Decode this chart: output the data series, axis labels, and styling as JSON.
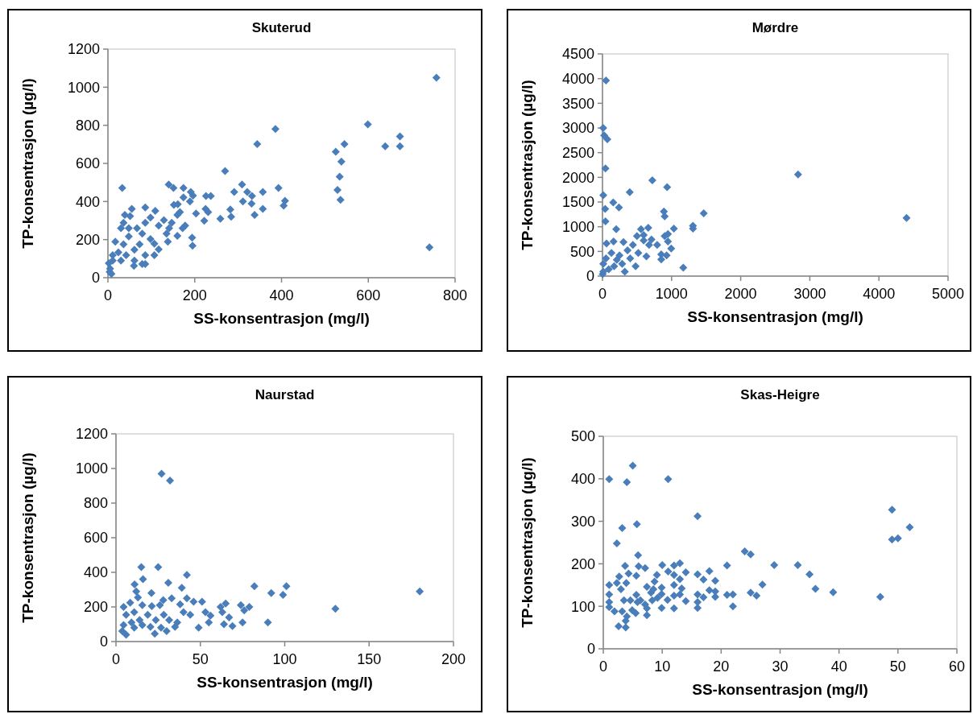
{
  "chart_data": [
    {
      "type": "scatter",
      "title": "Skuterud",
      "xlabel": "SS-konsentrasjon (mg/l)",
      "ylabel": "TP-konsentrasjon (µg/l)",
      "xlim": [
        0,
        800
      ],
      "ylim": [
        0,
        1200
      ],
      "xticks": [
        0,
        200,
        400,
        600,
        800
      ],
      "yticks": [
        0,
        200,
        400,
        600,
        800,
        1000,
        1200
      ],
      "marker": "diamond",
      "grid": false,
      "series": [
        {
          "color": "#4a7ebb",
          "x": [
            757,
            741,
            599,
            673,
            673,
            639,
            545,
            525,
            538,
            534,
            529,
            536,
            386,
            344,
            270,
            393,
            408,
            405,
            309,
            291,
            321,
            332,
            357,
            311,
            331,
            357,
            338,
            282,
            284,
            259,
            226,
            237,
            191,
            196,
            174,
            174,
            151,
            140,
            189,
            152,
            161,
            203,
            225,
            231,
            222,
            194,
            195,
            138,
            160,
            178,
            117,
            107,
            107,
            86,
            109,
            33,
            55,
            39,
            51,
            86,
            79,
            60,
            5,
            4,
            11,
            24,
            36,
            48,
            67,
            86,
            98,
            117,
            129,
            141,
            160,
            30,
            42,
            61,
            73,
            61,
            17,
            11,
            30,
            36,
            48,
            79,
            98,
            135,
            147,
            166,
            172,
            86,
            2,
            8
          ],
          "values": [
            1050,
            160,
            805,
            742,
            690,
            690,
            701,
            661,
            609,
            530,
            461,
            409,
            781,
            701,
            560,
            471,
            403,
            378,
            489,
            450,
            450,
            429,
            450,
            400,
            389,
            361,
            330,
            358,
            320,
            309,
            429,
            429,
            450,
            431,
            471,
            422,
            471,
            489,
            400,
            382,
            386,
            337,
            361,
            344,
            299,
            210,
            168,
            189,
            220,
            274,
            149,
            118,
            179,
            369,
            351,
            471,
            361,
            330,
            323,
            72,
            72,
            62,
            48,
            31,
            90,
            133,
            175,
            217,
            260,
            288,
            316,
            274,
            302,
            260,
            330,
            90,
            118,
            147,
            175,
            90,
            189,
            118,
            260,
            288,
            260,
            231,
            203,
            231,
            288,
            344,
            260,
            118,
            76,
            20
          ]
        }
      ]
    },
    {
      "type": "scatter",
      "title": "Mørdre",
      "xlabel": "SS-konsentrasjon (mg/l)",
      "ylabel": "TP-konsentrasjon (µg/l)",
      "xlim": [
        0,
        5000
      ],
      "ylim": [
        0,
        4500
      ],
      "xticks": [
        0,
        1000,
        2000,
        3000,
        4000,
        5000
      ],
      "yticks": [
        0,
        500,
        1000,
        1500,
        2000,
        2500,
        3000,
        3500,
        4000,
        4500
      ],
      "marker": "diamond",
      "grid": false,
      "series": [
        {
          "color": "#4a7ebb",
          "x": [
            4400,
            2830,
            50,
            10,
            25,
            70,
            43,
            12,
            39,
            43,
            156,
            238,
            394,
            721,
            935,
            889,
            900,
            1465,
            1309,
            1309,
            1033,
            199,
            557,
            662,
            499,
            596,
            709,
            791,
            900,
            947,
            947,
            994,
            850,
            928,
            850,
            635,
            1169,
            58,
            160,
            304,
            440,
            362,
            246,
            129,
            51,
            12,
            12,
            168,
            285,
            401,
            518,
            323,
            479,
            90,
            4,
            207,
            674,
            596
          ],
          "values": [
            1180,
            2060,
            3960,
            3000,
            2850,
            2770,
            2180,
            1640,
            1360,
            1110,
            1490,
            1390,
            1700,
            1940,
            1800,
            1310,
            1210,
            1270,
            1020,
            960,
            960,
            950,
            950,
            980,
            810,
            830,
            740,
            630,
            810,
            850,
            700,
            560,
            440,
            420,
            340,
            400,
            170,
            660,
            700,
            690,
            630,
            520,
            420,
            470,
            360,
            250,
            90,
            200,
            250,
            360,
            470,
            90,
            200,
            140,
            40,
            330,
            630,
            720
          ]
        }
      ]
    },
    {
      "type": "scatter",
      "title": "Naurstad",
      "xlabel": "SS-konsentrasjon (mg/l)",
      "ylabel": "TP-konsentrasjon (µg/l)",
      "xlim": [
        0,
        200
      ],
      "ylim": [
        0,
        1200
      ],
      "xticks": [
        0,
        50,
        100,
        150,
        200
      ],
      "yticks": [
        0,
        200,
        400,
        600,
        800,
        1000,
        1200
      ],
      "marker": "diamond",
      "grid": false,
      "series": [
        {
          "color": "#4a7ebb",
          "x": [
            180,
            130,
            27,
            32,
            15,
            25,
            42,
            16,
            11,
            12,
            13,
            21,
            31,
            39,
            82,
            101,
            92,
            99,
            79,
            74,
            76,
            75,
            90,
            65,
            62,
            63,
            67,
            64,
            69,
            56,
            53,
            55,
            49,
            51,
            46,
            42,
            33,
            28,
            38,
            40,
            44,
            35,
            30,
            23,
            4.5,
            8.4,
            15.6,
            21.2,
            26,
            6,
            10.8,
            18.8,
            23.6,
            28.3,
            31.5,
            36.3,
            4.5,
            3.7,
            6,
            10.8,
            15.6,
            20.4,
            9.2,
            14,
            26.7
          ],
          "values": [
            290,
            190,
            970,
            930,
            430,
            430,
            385,
            360,
            330,
            290,
            255,
            280,
            340,
            310,
            320,
            320,
            280,
            270,
            200,
            210,
            180,
            110,
            110,
            220,
            200,
            170,
            140,
            100,
            90,
            150,
            170,
            110,
            80,
            230,
            230,
            250,
            250,
            240,
            215,
            170,
            155,
            85,
            60,
            45,
            200,
            225,
            210,
            205,
            210,
            155,
            170,
            155,
            125,
            155,
            125,
            110,
            95,
            60,
            40,
            80,
            95,
            85,
            110,
            125,
            80
          ]
        }
      ]
    },
    {
      "type": "scatter",
      "title": "Skas-Heigre",
      "xlabel": "SS-konsentrasjon (mg/l)",
      "ylabel": "TP-konsentrasjon (µg/l)",
      "xlim": [
        0,
        60
      ],
      "ylim": [
        0,
        500
      ],
      "xticks": [
        0,
        10,
        20,
        30,
        40,
        50,
        60
      ],
      "yticks": [
        0,
        100,
        200,
        300,
        400,
        500
      ],
      "marker": "diamond",
      "grid": false,
      "series": [
        {
          "color": "#4a7ebb",
          "x": [
            5,
            1,
            4,
            11,
            16,
            3.2,
            5.7,
            2.3,
            5.9,
            49,
            52,
            49,
            50,
            24,
            25,
            21,
            29,
            33,
            35,
            36,
            39,
            47,
            27,
            25,
            26,
            22,
            21,
            22,
            19,
            18,
            16,
            17,
            19,
            19,
            18,
            16,
            16,
            16,
            17,
            14,
            13,
            12,
            11,
            10,
            9.1,
            8.7,
            12,
            13,
            12,
            13.3,
            13,
            12,
            14,
            12,
            9.9,
            9.9,
            9.9,
            10.9,
            8.5,
            7.4,
            8.1,
            6,
            7.1,
            5.6,
            3.7,
            4.3,
            2.7,
            2.3,
            3.9,
            3,
            1,
            1,
            1,
            1,
            1.9,
            3.2,
            3.5,
            4.6,
            5.6,
            5.8,
            4.9,
            5.5,
            4,
            3.8,
            2.6,
            3.8,
            7.4,
            7.4,
            8.3,
            6.3,
            7.1,
            9.2
          ],
          "values": [
            431,
            399,
            392,
            399,
            312,
            284,
            293,
            248,
            220,
            327,
            286,
            257,
            260,
            229,
            222,
            196,
            197,
            197,
            175,
            141,
            133,
            122,
            151,
            132,
            125,
            128,
            127,
            100,
            160,
            183,
            175,
            163,
            135,
            122,
            138,
            128,
            110,
            96,
            121,
            180,
            201,
            196,
            182,
            197,
            174,
            158,
            174,
            164,
            150,
            142,
            128,
            125,
            112,
            95,
            144,
            129,
            96,
            115,
            140,
            146,
            132,
            194,
            190,
            172,
            195,
            177,
            170,
            155,
            155,
            140,
            150,
            128,
            110,
            98,
            88,
            88,
            114,
            114,
            127,
            110,
            91,
            84,
            76,
            66,
            53,
            50,
            79,
            95,
            114,
            114,
            104,
            120
          ]
        }
      ]
    }
  ]
}
